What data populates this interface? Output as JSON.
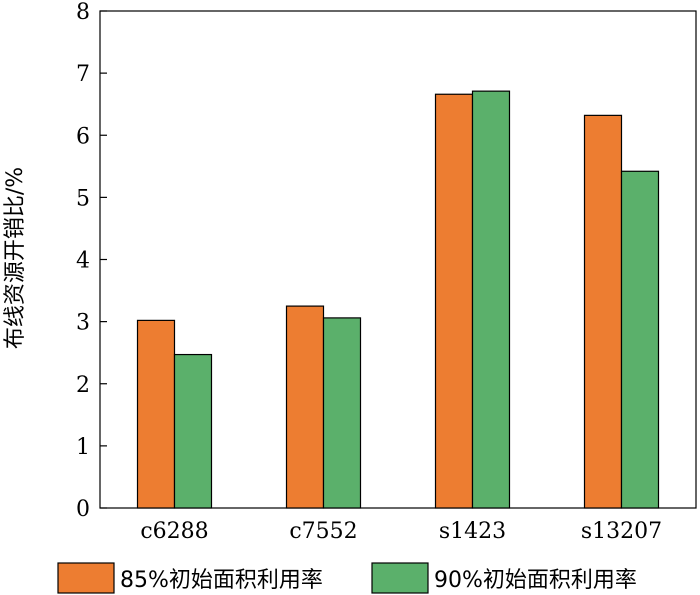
{
  "chart_data": {
    "type": "bar",
    "title": "",
    "xlabel": "",
    "ylabel": "布线资源开销比/%",
    "categories": [
      "c6288",
      "c7552",
      "s1423",
      "s13207"
    ],
    "series": [
      {
        "name": "85%初始面积利用率",
        "values": [
          3.02,
          3.25,
          6.66,
          6.32
        ],
        "color": "#ED7D31"
      },
      {
        "name": "90%初始面积利用率",
        "values": [
          2.47,
          3.06,
          6.71,
          5.42
        ],
        "color": "#5BB06B"
      }
    ],
    "ylim": [
      0,
      8
    ],
    "yticks": [
      0,
      1,
      2,
      3,
      4,
      5,
      6,
      7,
      8
    ],
    "grid": false,
    "legend_position": "bottom"
  }
}
